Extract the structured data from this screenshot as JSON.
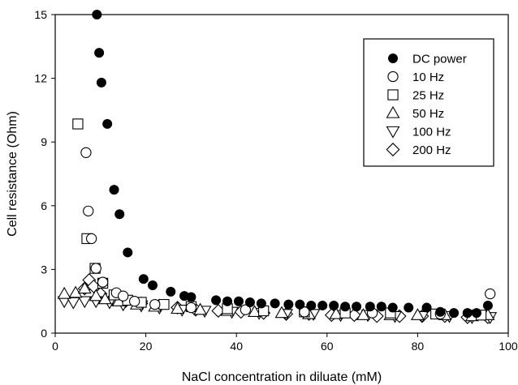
{
  "chart_data": {
    "type": "scatter",
    "title": "",
    "xlabel": "NaCl concentration in diluate (mM)",
    "ylabel": "Cell resistance (Ohm)",
    "xlim": [
      0,
      100
    ],
    "ylim": [
      0,
      15
    ],
    "xticks": [
      0,
      20,
      40,
      60,
      80,
      100
    ],
    "yticks": [
      0,
      3,
      6,
      9,
      12,
      15
    ],
    "grid": false,
    "legend_position": "top-right",
    "series": [
      {
        "name": "DC power",
        "marker": "filled-circle",
        "points": [
          [
            9.2,
            15.0
          ],
          [
            9.7,
            13.2
          ],
          [
            10.2,
            11.8
          ],
          [
            11.5,
            9.85
          ],
          [
            13.0,
            6.75
          ],
          [
            14.2,
            5.6
          ],
          [
            16.0,
            3.8
          ],
          [
            19.5,
            2.55
          ],
          [
            21.5,
            2.25
          ],
          [
            25.5,
            1.95
          ],
          [
            28.5,
            1.75
          ],
          [
            30.0,
            1.7
          ],
          [
            35.5,
            1.55
          ],
          [
            38.0,
            1.5
          ],
          [
            40.5,
            1.5
          ],
          [
            43.0,
            1.45
          ],
          [
            45.5,
            1.4
          ],
          [
            48.5,
            1.4
          ],
          [
            51.5,
            1.35
          ],
          [
            54.0,
            1.35
          ],
          [
            56.5,
            1.3
          ],
          [
            59.0,
            1.3
          ],
          [
            61.5,
            1.3
          ],
          [
            64.0,
            1.25
          ],
          [
            66.5,
            1.25
          ],
          [
            69.5,
            1.25
          ],
          [
            72.0,
            1.25
          ],
          [
            74.5,
            1.2
          ],
          [
            78.0,
            1.2
          ],
          [
            82.0,
            1.2
          ],
          [
            85.0,
            1.0
          ],
          [
            88.0,
            0.95
          ],
          [
            91.0,
            0.95
          ],
          [
            93.0,
            0.95
          ],
          [
            95.5,
            1.3
          ]
        ]
      },
      {
        "name": "10 Hz",
        "marker": "open-circle",
        "points": [
          [
            6.8,
            8.5
          ],
          [
            7.3,
            5.75
          ],
          [
            8.0,
            4.45
          ],
          [
            9.0,
            3.05
          ],
          [
            10.5,
            2.4
          ],
          [
            13.5,
            1.9
          ],
          [
            15.0,
            1.75
          ],
          [
            17.5,
            1.5
          ],
          [
            22.0,
            1.35
          ],
          [
            30.0,
            1.2
          ],
          [
            42.0,
            1.1
          ],
          [
            55.0,
            1.0
          ],
          [
            70.0,
            0.95
          ],
          [
            85.0,
            0.9
          ],
          [
            96.0,
            1.85
          ]
        ]
      },
      {
        "name": "25 Hz",
        "marker": "open-square",
        "points": [
          [
            5.0,
            9.85
          ],
          [
            7.0,
            4.45
          ],
          [
            8.8,
            3.05
          ],
          [
            10.5,
            2.35
          ],
          [
            13.0,
            1.8
          ],
          [
            16.0,
            1.55
          ],
          [
            19.0,
            1.45
          ],
          [
            24.0,
            1.35
          ],
          [
            30.0,
            1.25
          ],
          [
            38.0,
            1.15
          ],
          [
            46.0,
            1.05
          ],
          [
            55.0,
            1.0
          ],
          [
            64.0,
            0.95
          ],
          [
            74.0,
            0.95
          ],
          [
            84.0,
            0.9
          ],
          [
            94.0,
            0.85
          ]
        ]
      },
      {
        "name": "50 Hz",
        "marker": "open-triangle-up",
        "points": [
          [
            2.0,
            1.85
          ],
          [
            4.5,
            1.9
          ],
          [
            6.5,
            2.1
          ],
          [
            9.0,
            1.75
          ],
          [
            11.0,
            1.6
          ],
          [
            14.0,
            1.5
          ],
          [
            18.0,
            1.35
          ],
          [
            22.0,
            1.25
          ],
          [
            27.0,
            1.15
          ],
          [
            32.0,
            1.1
          ],
          [
            38.0,
            1.05
          ],
          [
            44.0,
            1.0
          ],
          [
            50.0,
            0.95
          ],
          [
            56.0,
            0.9
          ],
          [
            62.0,
            0.9
          ],
          [
            68.0,
            0.85
          ],
          [
            74.0,
            0.85
          ],
          [
            80.0,
            0.85
          ],
          [
            86.0,
            0.85
          ],
          [
            92.0,
            0.8
          ],
          [
            95.5,
            0.85
          ]
        ]
      },
      {
        "name": "100 Hz",
        "marker": "open-triangle-down",
        "points": [
          [
            2.0,
            1.5
          ],
          [
            4.0,
            1.45
          ],
          [
            6.5,
            1.5
          ],
          [
            9.0,
            1.5
          ],
          [
            12.0,
            1.45
          ],
          [
            15.0,
            1.35
          ],
          [
            19.0,
            1.3
          ],
          [
            23.0,
            1.2
          ],
          [
            28.0,
            1.1
          ],
          [
            33.0,
            1.05
          ],
          [
            39.0,
            1.0
          ],
          [
            45.0,
            0.95
          ],
          [
            51.0,
            0.9
          ],
          [
            57.0,
            0.9
          ],
          [
            63.0,
            0.85
          ],
          [
            69.0,
            0.85
          ],
          [
            75.0,
            0.8
          ],
          [
            81.0,
            0.8
          ],
          [
            87.0,
            0.8
          ],
          [
            92.0,
            0.75
          ],
          [
            96.0,
            0.75
          ]
        ]
      },
      {
        "name": "200 Hz",
        "marker": "open-diamond",
        "points": [
          [
            6.5,
            2.1
          ],
          [
            7.5,
            2.5
          ],
          [
            8.5,
            2.2
          ],
          [
            10.0,
            1.85
          ],
          [
            12.5,
            1.6
          ],
          [
            15.5,
            1.5
          ],
          [
            19.0,
            1.4
          ],
          [
            23.0,
            1.3
          ],
          [
            27.0,
            1.2
          ],
          [
            31.0,
            1.1
          ],
          [
            36.0,
            1.05
          ],
          [
            41.0,
            1.0
          ],
          [
            46.0,
            0.95
          ],
          [
            51.0,
            0.9
          ],
          [
            56.0,
            0.9
          ],
          [
            61.0,
            0.85
          ],
          [
            66.0,
            0.85
          ],
          [
            71.0,
            0.8
          ],
          [
            76.0,
            0.8
          ],
          [
            81.0,
            0.8
          ],
          [
            86.0,
            0.8
          ],
          [
            91.0,
            0.75
          ],
          [
            95.5,
            0.75
          ]
        ]
      }
    ]
  }
}
